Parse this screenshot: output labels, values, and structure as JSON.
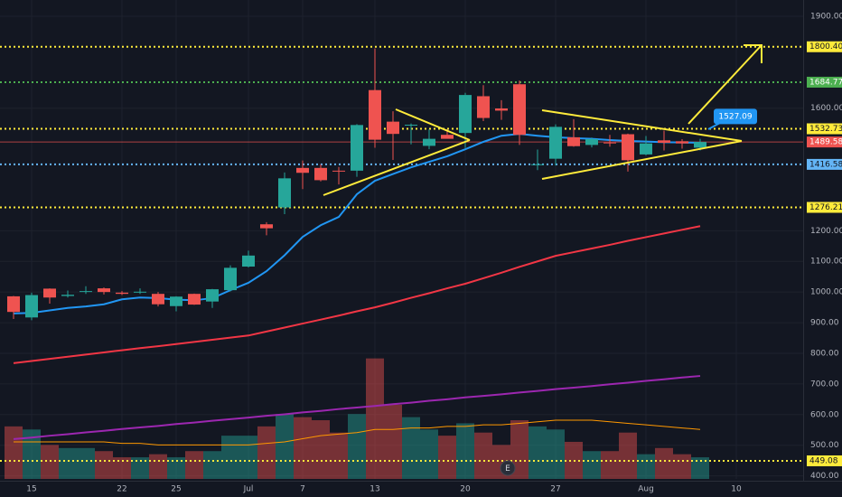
{
  "chart_data": {
    "type": "candlestick",
    "categories": [
      null,
      "15",
      null,
      null,
      null,
      null,
      "22",
      null,
      null,
      "25",
      null,
      null,
      null,
      "Jul",
      null,
      null,
      "7",
      null,
      null,
      null,
      "13",
      null,
      null,
      null,
      null,
      "20",
      null,
      null,
      null,
      null,
      "27",
      null,
      null,
      null,
      null,
      "Aug",
      null,
      null,
      null,
      null,
      "10"
    ],
    "open": [
      986,
      917,
      1011,
      987,
      1003,
      1012,
      998,
      998,
      994,
      954,
      994,
      969,
      1006,
      1083,
      1221,
      1276,
      1405,
      1405,
      1396,
      1396,
      1659,
      1556,
      1543,
      1477,
      1513,
      1519,
      1639,
      1599,
      1678,
      1416,
      1435,
      1505,
      1480,
      1488,
      1515,
      1449,
      1495,
      1492,
      1471,
      null,
      null
    ],
    "high": [
      987,
      998,
      1012,
      1005,
      1019,
      1015,
      1003,
      1012,
      1000,
      986,
      995,
      1010,
      1087,
      1135,
      1228,
      1390,
      1429,
      1417,
      1408,
      1548,
      1795,
      1590,
      1550,
      1531,
      1531,
      1650,
      1675,
      1626,
      1690,
      1465,
      1547,
      1564,
      1504,
      1513,
      1517,
      1509,
      1527,
      1499,
      1500,
      null,
      null
    ],
    "low": [
      912,
      908,
      962,
      982,
      994,
      992,
      990,
      994,
      953,
      937,
      958,
      948,
      1002,
      1080,
      1185,
      1254,
      1336,
      1361,
      1351,
      1376,
      1471,
      1431,
      1482,
      1466,
      1503,
      1470,
      1558,
      1562,
      1480,
      1398,
      1413,
      1474,
      1472,
      1474,
      1393,
      1446,
      1462,
      1468,
      1462,
      null,
      null
    ],
    "close": [
      935,
      990,
      982,
      991,
      1003,
      1000,
      994,
      1001,
      960,
      985,
      959,
      1009,
      1079,
      1119,
      1208,
      1371,
      1389,
      1365,
      1394,
      1545,
      1497,
      1516,
      1546,
      1500,
      1500,
      1643,
      1568,
      1592,
      1513,
      1417,
      1539,
      1476,
      1499,
      1487,
      1430,
      1485,
      1487,
      1485,
      1489.58,
      null,
      null
    ],
    "volume": [
      17,
      16,
      11,
      10,
      10,
      9,
      7,
      7,
      8,
      7,
      9,
      9,
      14,
      14,
      17,
      21,
      20,
      19,
      15,
      21,
      39,
      24,
      20,
      16,
      14,
      18,
      15,
      11,
      19,
      17,
      16,
      12,
      9,
      9,
      15,
      8,
      10,
      8,
      7,
      null,
      null
    ],
    "volume_lim": [
      0,
      155
    ],
    "up_color": "#26a69a",
    "down_color": "#ef5350",
    "lines": [
      {
        "color": "#2196f3",
        "width": 2,
        "values": [
          930,
          932,
          940,
          948,
          953,
          960,
          976,
          982,
          980,
          975,
          973,
          980,
          1006,
          1030,
          1068,
          1120,
          1180,
          1218,
          1245,
          1319,
          1363,
          1385,
          1407,
          1425,
          1443,
          1466,
          1490,
          1510,
          1516,
          1510,
          1505,
          1502,
          1500,
          1496,
          1493,
          1491,
          1489,
          1488,
          1487,
          null,
          null
        ]
      },
      {
        "color": "#f23645",
        "width": 2,
        "values": [
          768,
          775,
          782,
          789,
          796,
          803,
          810,
          817,
          823,
          830,
          837,
          844,
          851,
          858,
          871,
          884,
          897,
          910,
          923,
          937,
          950,
          965,
          981,
          996,
          1012,
          1027,
          1045,
          1063,
          1082,
          1100,
          1118,
          1130,
          1142,
          1154,
          1167,
          1179,
          1191,
          1203,
          1215,
          null,
          null
        ]
      },
      {
        "color": "#9c27b0",
        "width": 2,
        "values": [
          520,
          525,
          531,
          536,
          542,
          547,
          553,
          558,
          563,
          569,
          574,
          580,
          585,
          590,
          596,
          601,
          607,
          612,
          618,
          623,
          628,
          634,
          639,
          645,
          650,
          656,
          661,
          666,
          672,
          677,
          683,
          688,
          693,
          699,
          704,
          710,
          715,
          721,
          726,
          null,
          null
        ]
      },
      {
        "color": "#ff9800",
        "width": 1,
        "axis": "volume",
        "values": [
          12,
          12,
          12,
          12,
          12,
          12,
          11.5,
          11.5,
          11,
          11,
          11,
          11,
          11,
          11,
          11.5,
          12,
          13,
          14,
          14.5,
          15,
          16,
          16,
          16.5,
          16.5,
          17,
          17,
          17.5,
          17.5,
          18,
          18.5,
          19,
          19,
          19,
          18.5,
          18,
          17.5,
          17,
          16.5,
          16,
          null,
          null
        ]
      }
    ],
    "ylim": [
      390,
      1953
    ],
    "yticks": [
      {
        "value": 1900,
        "label": "1900.00"
      },
      {
        "value": 1600,
        "label": "1600.00"
      },
      {
        "value": 1200,
        "label": "1200.00"
      },
      {
        "value": 1100,
        "label": "1100.00"
      },
      {
        "value": 1000,
        "label": "1000.00"
      },
      {
        "value": 900,
        "label": "900.00"
      },
      {
        "value": 800,
        "label": "800.00"
      },
      {
        "value": 700,
        "label": "700.00"
      },
      {
        "value": 600,
        "label": "600.00"
      },
      {
        "value": 500,
        "label": "500.00"
      },
      {
        "value": 400,
        "label": "400.00"
      }
    ],
    "grid": true,
    "levels": [
      {
        "value": 1800.4,
        "label": "1800.40",
        "color": "#ffeb3b"
      },
      {
        "value": 1684.77,
        "color": "#4caf50"
      },
      {
        "value": 1532.73,
        "color": "#ffeb3b"
      },
      {
        "value": 1416.58,
        "color": "#64b5f6"
      },
      {
        "value": 1276.21,
        "color": "#ffeb3b"
      },
      {
        "value": 449.08,
        "color": "#ffeb3b"
      }
    ],
    "last_price": {
      "value": 1489.58,
      "color": "#ef5350"
    },
    "note": {
      "value": 1527.09,
      "color": "#2196f3"
    },
    "event_label": "E"
  }
}
